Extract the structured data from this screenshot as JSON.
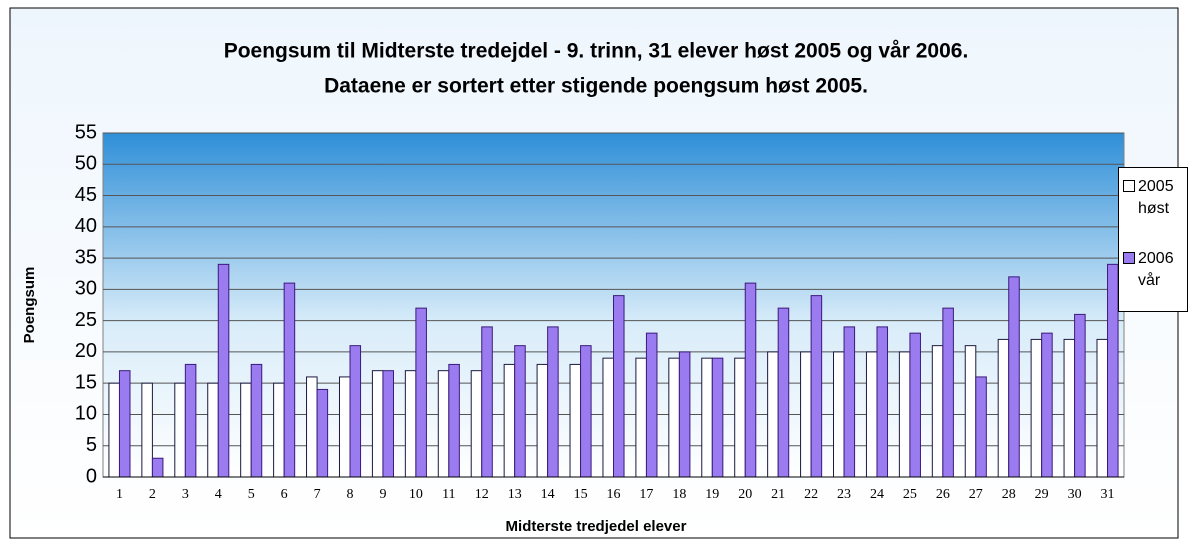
{
  "chart_data": {
    "type": "bar",
    "title": "Poengsum til Midterste tredejdel - 9. trinn, 31 elever høst 2005 og vår 2006.",
    "subtitle": "Dataene er sortert etter stigende poengsum høst 2005.",
    "x_label": "Midterste tredjedel elever",
    "y_label": "Poengsum",
    "categories": [
      "1",
      "2",
      "3",
      "4",
      "5",
      "6",
      "7",
      "8",
      "9",
      "10",
      "11",
      "12",
      "13",
      "14",
      "15",
      "16",
      "17",
      "18",
      "19",
      "20",
      "21",
      "22",
      "23",
      "24",
      "25",
      "26",
      "27",
      "28",
      "29",
      "30",
      "31"
    ],
    "series": [
      {
        "name": "2005 høst",
        "color": "#ffffff",
        "edge": "#1a1a40",
        "values": [
          15,
          15,
          15,
          15,
          15,
          15,
          16,
          16,
          17,
          17,
          17,
          17,
          18,
          18,
          18,
          19,
          19,
          19,
          19,
          19,
          20,
          20,
          20,
          20,
          20,
          21,
          21,
          22,
          22,
          22,
          22
        ]
      },
      {
        "name": "2006 vår",
        "color": "#9b7cf0",
        "edge": "#3a1a7a",
        "values": [
          17,
          3,
          18,
          34,
          18,
          31,
          14,
          21,
          17,
          27,
          18,
          24,
          21,
          24,
          21,
          29,
          23,
          20,
          19,
          31,
          27,
          29,
          24,
          24,
          23,
          27,
          16,
          32,
          23,
          26,
          34
        ]
      }
    ],
    "ylim": [
      0,
      55
    ],
    "yticks": [
      0,
      5,
      10,
      15,
      20,
      25,
      30,
      35,
      40,
      45,
      50,
      55
    ],
    "grid": true,
    "legend": "right"
  }
}
